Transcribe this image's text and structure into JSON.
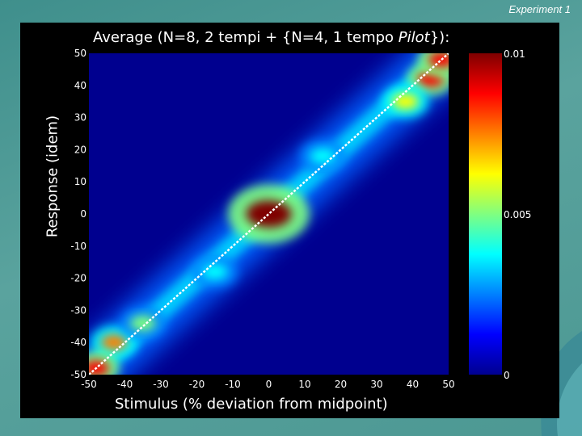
{
  "slide": {
    "corner_label": "Experiment 1"
  },
  "chart_data": {
    "type": "heatmap",
    "title_main": "Average (N=8, 2 tempi + {N=4, 1 tempo ",
    "title_italic": "Pilot",
    "title_end": "}):",
    "xlabel": "Stimulus (% deviation from midpoint)",
    "ylabel": "Response (idem)",
    "xlim": [
      -50,
      50
    ],
    "ylim": [
      -50,
      50
    ],
    "xticks": [
      "-50",
      "-40",
      "-30",
      "-20",
      "-10",
      "0",
      "10",
      "20",
      "30",
      "40",
      "50"
    ],
    "yticks": [
      "50",
      "40",
      "30",
      "20",
      "10",
      "0",
      "-10",
      "-20",
      "-30",
      "-40",
      "-50"
    ],
    "colorbar": {
      "min": 0,
      "max": 0.01,
      "tick_labels": [
        "0.01",
        "0.005",
        "0"
      ],
      "colormap": [
        "#7f0000",
        "#ff0000",
        "#ff8000",
        "#ffff00",
        "#80ff80",
        "#00ffff",
        "#0080ff",
        "#0000ff",
        "#00008f"
      ]
    },
    "identity_line": {
      "from": [
        -50,
        -50
      ],
      "to": [
        50,
        50
      ],
      "color": "#ffffff",
      "style": "dotted"
    },
    "hotspots": [
      {
        "x": 0,
        "y": 0,
        "value": 0.0095
      },
      {
        "x": 45,
        "y": 42,
        "value": 0.0085
      },
      {
        "x": -43,
        "y": -40,
        "value": 0.0075
      },
      {
        "x": -48,
        "y": -48,
        "value": 0.009
      },
      {
        "x": 48,
        "y": 48,
        "value": 0.009
      },
      {
        "x": 38,
        "y": 35,
        "value": 0.006
      },
      {
        "x": -35,
        "y": -34,
        "value": 0.005
      },
      {
        "x": 15,
        "y": 18,
        "value": 0.004
      },
      {
        "x": -15,
        "y": -18,
        "value": 0.004
      }
    ]
  }
}
